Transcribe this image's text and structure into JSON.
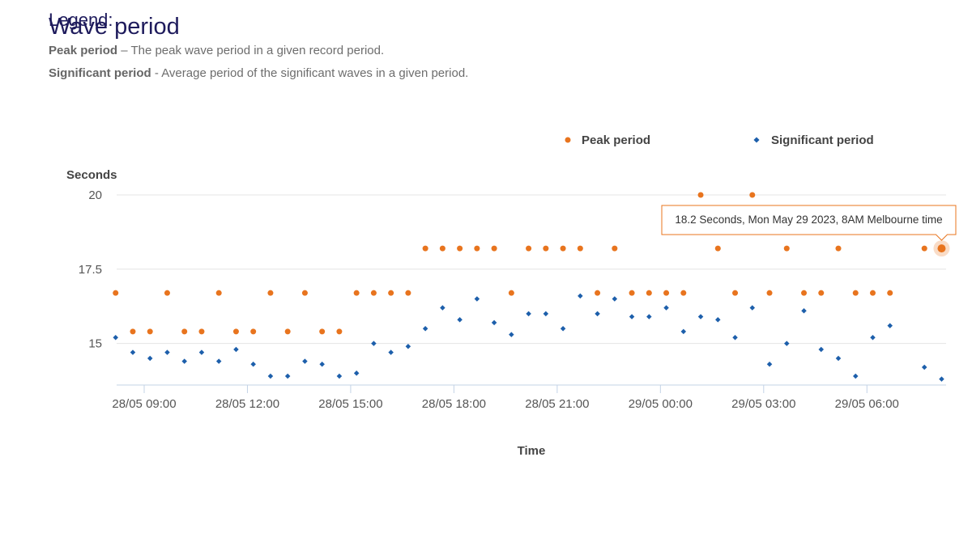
{
  "header": {
    "legend_word": "Legend:",
    "title": "Wave period"
  },
  "definitions": [
    {
      "term": "Peak period",
      "separator": " – ",
      "text": "The peak wave period in a given record period."
    },
    {
      "term": "Significant period",
      "separator": " - ",
      "text": "Average period of the significant waves in a given period."
    }
  ],
  "colors": {
    "peak": "#e8741e",
    "significant": "#1d5fab",
    "grid": "#e4e4e4",
    "axis": "#c3d3e6"
  },
  "chart_data": {
    "type": "scatter",
    "x_unit": "hours from 28/05 00:00",
    "xlabel": "Time",
    "ylabel": "Seconds",
    "ylim": [
      13.6,
      20.3
    ],
    "xlim": [
      8.2,
      32.3
    ],
    "y_ticks": [
      15,
      17.5,
      20
    ],
    "y_tick_labels": [
      "15",
      "17.5",
      "20"
    ],
    "x_ticks": [
      9,
      12,
      15,
      18,
      21,
      24,
      27,
      30
    ],
    "x_tick_labels": [
      "28/05 09:00",
      "28/05 12:00",
      "28/05 15:00",
      "28/05 18:00",
      "28/05 21:00",
      "29/05 00:00",
      "29/05 03:00",
      "29/05 06:00"
    ],
    "grid": "horizontal",
    "legend_position": "top-right",
    "x": [
      8.17,
      8.67,
      9.17,
      9.67,
      10.17,
      10.67,
      11.17,
      11.67,
      12.17,
      12.67,
      13.17,
      13.67,
      14.17,
      14.67,
      15.17,
      15.67,
      16.17,
      16.67,
      17.17,
      17.67,
      18.17,
      18.67,
      19.17,
      19.67,
      20.17,
      20.67,
      21.17,
      21.67,
      22.17,
      22.67,
      23.17,
      23.67,
      24.17,
      24.67,
      25.17,
      25.67,
      26.17,
      26.67,
      27.17,
      27.67,
      28.17,
      28.67,
      29.17,
      29.67,
      30.17,
      30.67,
      31.17,
      31.67,
      32.17
    ],
    "series": [
      {
        "name": "Peak period",
        "marker": "circle",
        "values": [
          16.7,
          15.4,
          15.4,
          16.7,
          15.4,
          15.4,
          16.7,
          15.4,
          15.4,
          16.7,
          15.4,
          16.7,
          15.4,
          15.4,
          16.7,
          16.7,
          16.7,
          16.7,
          18.2,
          18.2,
          18.2,
          18.2,
          18.2,
          16.7,
          18.2,
          18.2,
          18.2,
          18.2,
          16.7,
          18.2,
          16.7,
          16.7,
          16.7,
          16.7,
          20.0,
          18.2,
          16.7,
          20.0,
          16.7,
          18.2,
          16.7,
          16.7,
          18.2,
          16.7,
          16.7,
          16.7,
          null,
          18.2,
          18.2
        ]
      },
      {
        "name": "Significant period",
        "marker": "diamond",
        "values": [
          15.2,
          14.7,
          14.5,
          14.7,
          14.4,
          14.7,
          14.4,
          14.8,
          14.3,
          13.9,
          13.9,
          14.4,
          14.3,
          13.9,
          14.0,
          15.0,
          14.7,
          14.9,
          15.5,
          16.2,
          15.8,
          16.5,
          15.7,
          15.3,
          16.0,
          16.0,
          15.5,
          16.6,
          16.0,
          16.5,
          15.9,
          15.9,
          16.2,
          15.4,
          15.9,
          15.8,
          15.2,
          16.2,
          14.3,
          15.0,
          16.1,
          14.8,
          14.5,
          13.9,
          15.2,
          15.6,
          null,
          14.2,
          13.8
        ]
      }
    ],
    "tooltip": {
      "text": "18.2 Seconds, Mon May 29 2023, 8AM Melbourne time",
      "x": 32.17,
      "y": 18.2,
      "series": "Peak period"
    }
  }
}
